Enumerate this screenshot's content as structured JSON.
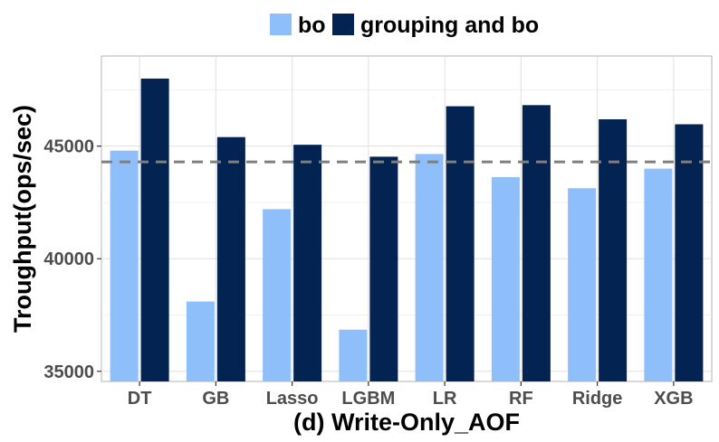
{
  "chart_data": {
    "type": "bar",
    "categories": [
      "DT",
      "GB",
      "Lasso",
      "LGBM",
      "LR",
      "RF",
      "Ridge",
      "XGB"
    ],
    "series": [
      {
        "name": "bo",
        "color": "#8ebffa",
        "values": [
          44800,
          38100,
          42200,
          36850,
          44650,
          43620,
          43130,
          44000
        ]
      },
      {
        "name": "grouping and bo",
        "color": "#032353",
        "values": [
          48000,
          45400,
          45060,
          44530,
          46770,
          46820,
          46190,
          45970
        ]
      }
    ],
    "reference_line": {
      "value": 44300,
      "style": "dashed",
      "color": "#7f7f7f"
    },
    "xlabel": "(d) Write-Only_AOF",
    "ylabel": "Troughput(ops/sec)",
    "y_ticks": [
      35000,
      40000,
      45000
    ],
    "ylim": [
      34550,
      49000
    ],
    "grid": true,
    "legend_position": "top"
  }
}
